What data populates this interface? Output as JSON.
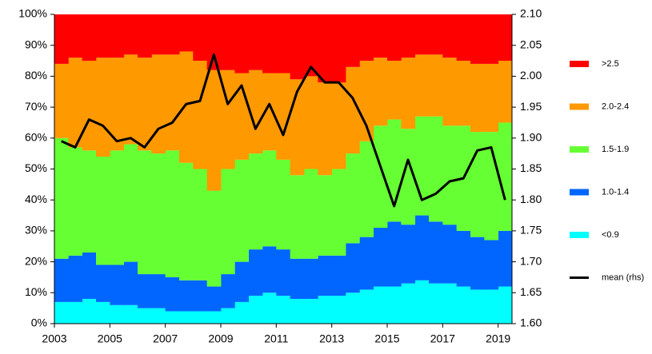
{
  "chart_data": {
    "type": "bar",
    "stacked": true,
    "x": [
      2003,
      2003.5,
      2004,
      2004.5,
      2005,
      2005.5,
      2006,
      2006.5,
      2007,
      2007.5,
      2008,
      2008.5,
      2009,
      2009.5,
      2010,
      2010.5,
      2011,
      2011.5,
      2012,
      2012.5,
      2013,
      2013.5,
      2014,
      2014.5,
      2015,
      2015.5,
      2016,
      2016.5,
      2017,
      2017.5,
      2018,
      2018.5,
      2019
    ],
    "series": [
      {
        "name": "<0.9",
        "color": "#00ffff",
        "values": [
          7,
          7,
          8,
          7,
          6,
          6,
          5,
          5,
          4,
          4,
          4,
          4,
          5,
          7,
          9,
          10,
          9,
          8,
          8,
          9,
          9,
          10,
          11,
          12,
          12,
          13,
          14,
          13,
          13,
          12,
          11,
          11,
          12
        ]
      },
      {
        "name": "1.0-1.4",
        "color": "#0066ff",
        "values": [
          14,
          15,
          15,
          12,
          13,
          14,
          11,
          11,
          11,
          10,
          10,
          8,
          11,
          13,
          15,
          15,
          15,
          13,
          13,
          13,
          13,
          16,
          17,
          19,
          21,
          19,
          21,
          20,
          19,
          18,
          17,
          16,
          18
        ]
      },
      {
        "name": "1.5-1.9",
        "color": "#66ff33",
        "values": [
          39,
          35,
          33,
          35,
          37,
          38,
          40,
          39,
          41,
          38,
          36,
          31,
          34,
          33,
          31,
          31,
          29,
          27,
          29,
          26,
          28,
          29,
          31,
          33,
          33,
          31,
          32,
          34,
          32,
          34,
          34,
          35,
          35
        ]
      },
      {
        "name": "2.0-2.4",
        "color": "#ff9900",
        "values": [
          24,
          29,
          29,
          32,
          30,
          29,
          30,
          32,
          31,
          36,
          35,
          39,
          32,
          28,
          27,
          25,
          28,
          31,
          30,
          30,
          28,
          28,
          26,
          22,
          19,
          23,
          20,
          20,
          22,
          21,
          22,
          22,
          20
        ]
      },
      {
        "name": ">2.5",
        "color": "#ff0000",
        "values": [
          16,
          14,
          15,
          14,
          14,
          13,
          14,
          13,
          13,
          12,
          15,
          18,
          18,
          19,
          18,
          19,
          19,
          21,
          20,
          22,
          22,
          17,
          15,
          14,
          15,
          14,
          13,
          13,
          14,
          15,
          16,
          16,
          15
        ]
      },
      {
        "name": "mean (rhs)",
        "color": "#000000",
        "type": "line",
        "axis": "y2",
        "values": [
          1.895,
          1.885,
          1.93,
          1.92,
          1.895,
          1.9,
          1.885,
          1.915,
          1.925,
          1.955,
          1.96,
          2.035,
          1.955,
          1.985,
          1.915,
          1.955,
          1.905,
          1.975,
          2.015,
          1.99,
          1.99,
          1.965,
          1.92,
          1.855,
          1.79,
          1.865,
          1.8,
          1.81,
          1.83,
          1.835,
          1.88,
          1.885,
          1.8
        ]
      }
    ],
    "xlim": [
      2003,
      2019.5
    ],
    "xticks": [
      2003,
      2005,
      2007,
      2009,
      2011,
      2013,
      2015,
      2017,
      2019
    ],
    "ylim": [
      0,
      100
    ],
    "yticks": [
      {
        "value": 0,
        "label": "0%"
      },
      {
        "value": 10,
        "label": "10%"
      },
      {
        "value": 20,
        "label": "20%"
      },
      {
        "value": 30,
        "label": "30%"
      },
      {
        "value": 40,
        "label": "40%"
      },
      {
        "value": 50,
        "label": "50%"
      },
      {
        "value": 60,
        "label": "60%"
      },
      {
        "value": 70,
        "label": "70%"
      },
      {
        "value": 80,
        "label": "80%"
      },
      {
        "value": 90,
        "label": "90%"
      },
      {
        "value": 100,
        "label": "100%"
      }
    ],
    "y2lim": [
      1.6,
      2.1
    ],
    "y2ticks": [
      {
        "value": 1.6,
        "label": "1.60"
      },
      {
        "value": 1.65,
        "label": "1.65"
      },
      {
        "value": 1.7,
        "label": "1.70"
      },
      {
        "value": 1.75,
        "label": "1.75"
      },
      {
        "value": 1.8,
        "label": "1.80"
      },
      {
        "value": 1.85,
        "label": "1.85"
      },
      {
        "value": 1.9,
        "label": "1.90"
      },
      {
        "value": 1.95,
        "label": "1.95"
      },
      {
        "value": 2.0,
        "label": "2.00"
      },
      {
        "value": 2.05,
        "label": "2.05"
      },
      {
        "value": 2.1,
        "label": "2.10"
      }
    ]
  }
}
